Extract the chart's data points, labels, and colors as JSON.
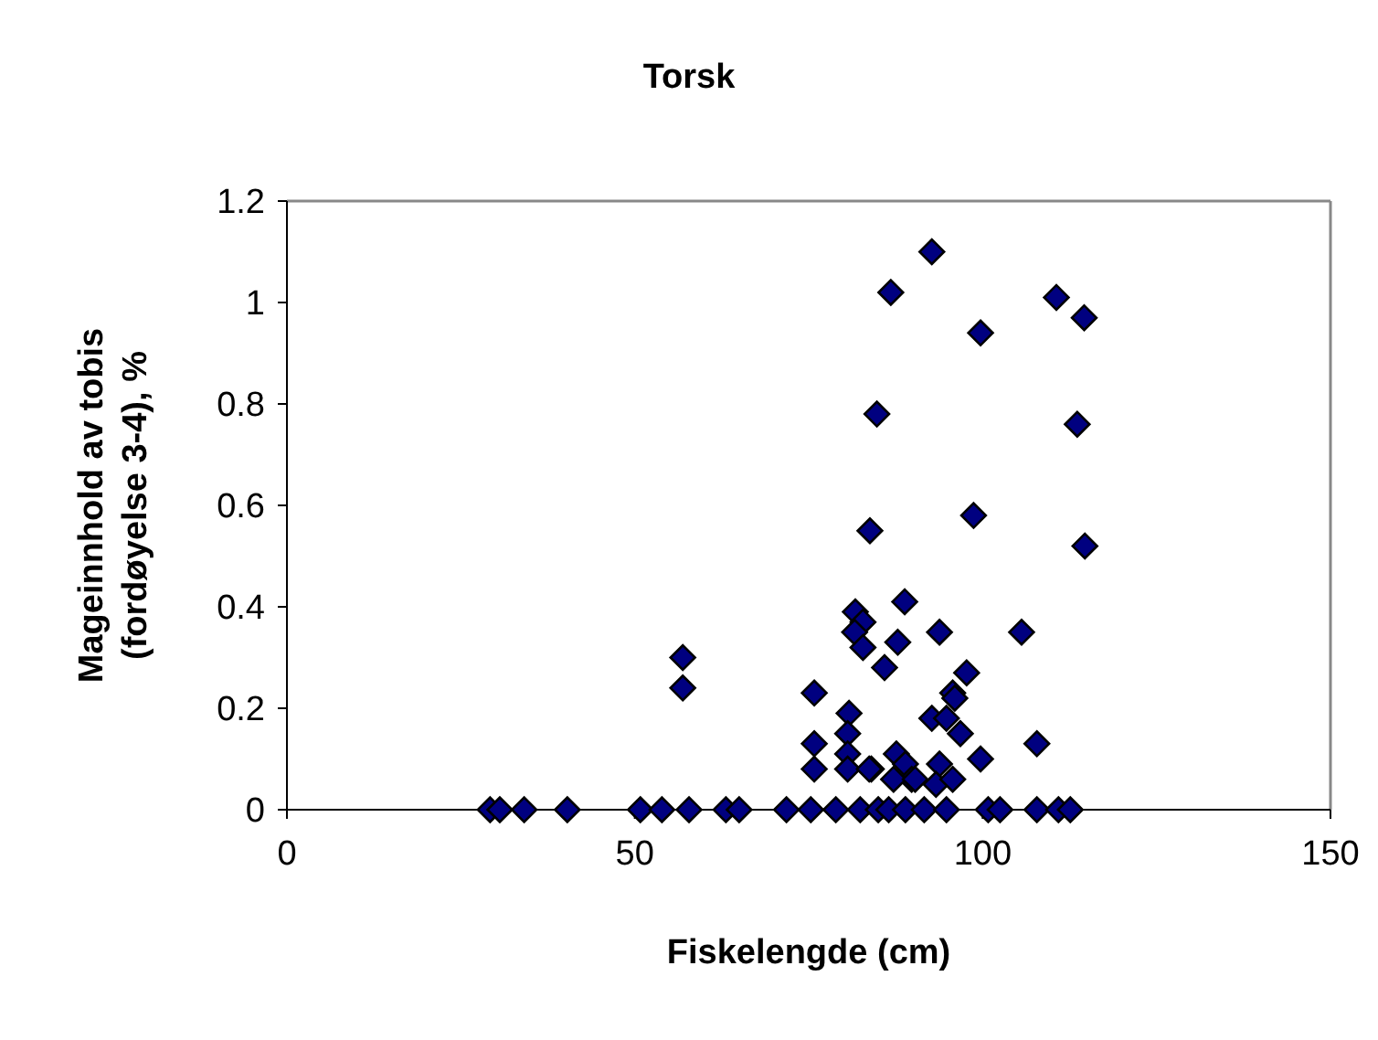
{
  "chart_data": {
    "type": "scatter",
    "title": "Torsk",
    "xlabel": "Fiskelengde (cm)",
    "ylabel": "Mageinnhold av tobis (fordøyelse 3-4), %",
    "xlim": [
      0,
      150
    ],
    "xticks": [
      0,
      50,
      100,
      150
    ],
    "ylim": [
      0,
      1.2
    ],
    "yticks": [
      0,
      0.2,
      0.4,
      0.6,
      0.8,
      1,
      1.2
    ],
    "marker": "diamond",
    "grid": false,
    "series": [
      {
        "color": "#000080",
        "x": [
          92.7,
          86.8,
          110.6,
          114.6,
          99.7,
          84.8,
          113.6,
          83.8,
          98.7,
          114.7,
          88.8,
          81.7,
          82.8,
          105.6,
          93.8,
          56.9,
          56.9,
          75.8,
          80.8,
          80.6,
          75.8,
          80.6,
          75.8,
          80.6,
          84,
          85.9,
          87.8,
          81.6,
          82.8,
          83.7,
          87.6,
          88.9,
          89.8,
          87.2,
          97.7,
          95.7,
          96,
          92.7,
          94.8,
          96.8,
          107.8,
          93.8,
          99.7,
          90.3,
          93.3,
          95.7,
          29.2,
          30.6,
          34.1,
          40.3,
          50.8,
          53.9,
          57.8,
          63.1,
          65,
          71.8,
          75.3,
          78.9,
          82.4,
          85,
          86.5,
          88.9,
          91.6,
          94.8,
          100.8,
          102.5,
          107.8,
          110.9,
          112.6
        ],
        "values": [
          1.1,
          1.02,
          1.01,
          0.97,
          0.94,
          0.78,
          0.76,
          0.55,
          0.58,
          0.52,
          0.41,
          0.39,
          0.37,
          0.35,
          0.35,
          0.3,
          0.24,
          0.23,
          0.19,
          0.15,
          0.13,
          0.11,
          0.08,
          0.08,
          0.08,
          0.28,
          0.33,
          0.35,
          0.32,
          0.08,
          0.11,
          0.09,
          0.06,
          0.06,
          0.27,
          0.23,
          0.22,
          0.18,
          0.18,
          0.15,
          0.13,
          0.09,
          0.1,
          0.06,
          0.05,
          0.06,
          0,
          0,
          0,
          0,
          0,
          0,
          0,
          0,
          0,
          0,
          0,
          0,
          0,
          0,
          0,
          0,
          0,
          0,
          0,
          0,
          0,
          0,
          0
        ]
      }
    ]
  }
}
